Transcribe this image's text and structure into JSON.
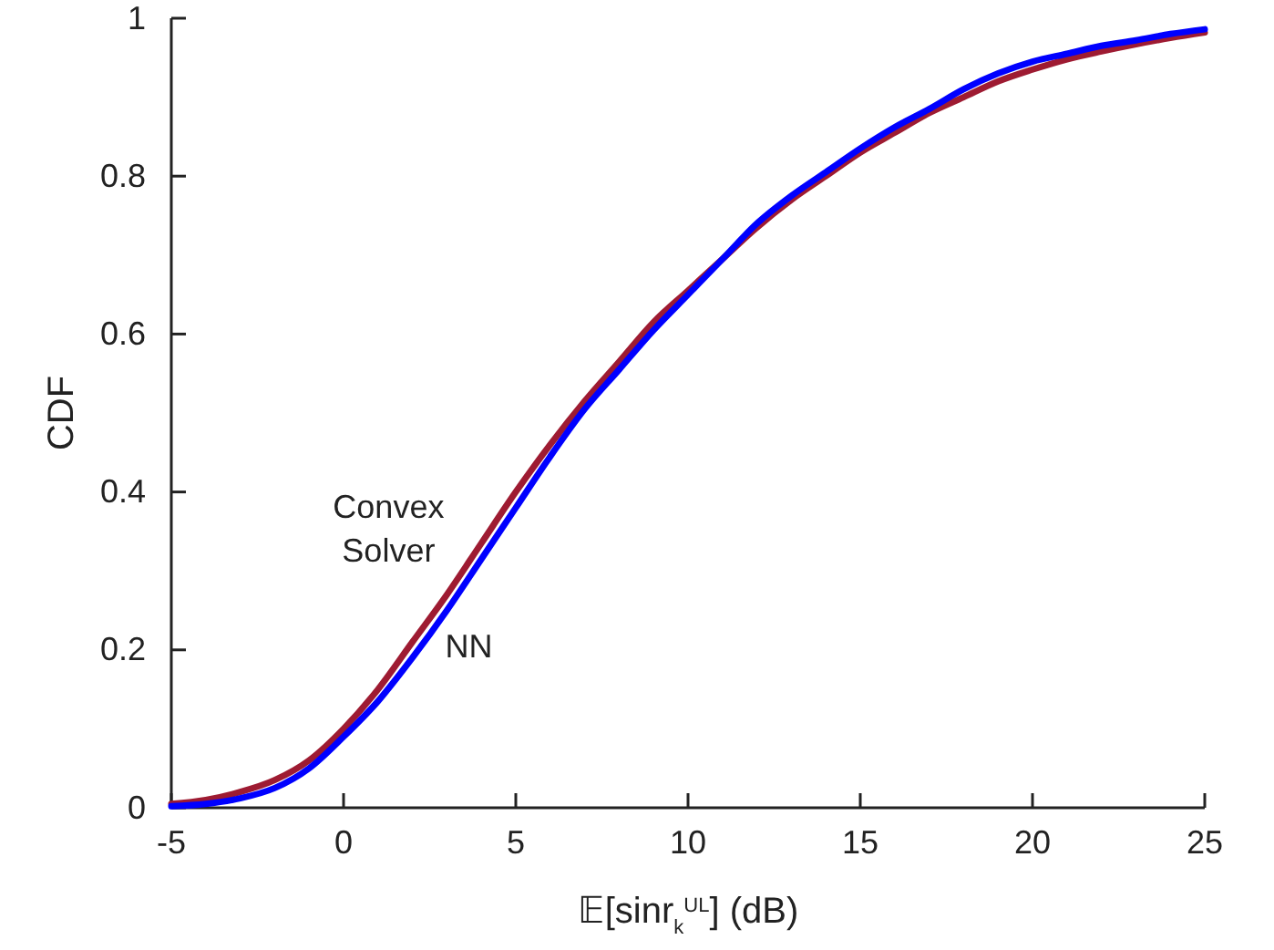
{
  "chart_data": {
    "type": "line",
    "xlabel": "𝔼[sinr$_{k}$$^{UL}$] (dB)",
    "ylabel": "CDF",
    "xlim": [
      -5,
      25
    ],
    "ylim": [
      0,
      1
    ],
    "xticks": [
      -5,
      0,
      5,
      10,
      15,
      20,
      25
    ],
    "yticks": [
      0,
      0.2,
      0.4,
      0.6,
      0.8,
      1
    ],
    "grid": false,
    "legend": false,
    "marker": "none",
    "line_style": "solid",
    "x": [
      -5,
      -4,
      -3,
      -2,
      -1,
      0,
      1,
      2,
      3,
      4,
      5,
      6,
      7,
      8,
      9,
      10,
      11,
      12,
      13,
      14,
      15,
      16,
      17,
      18,
      19,
      20,
      21,
      22,
      23,
      24,
      25
    ],
    "series": [
      {
        "name": "Convex Solver",
        "color": "#9e1b32",
        "values": [
          0.005,
          0.01,
          0.02,
          0.035,
          0.06,
          0.1,
          0.15,
          0.21,
          0.27,
          0.335,
          0.4,
          0.46,
          0.515,
          0.565,
          0.615,
          0.655,
          0.695,
          0.735,
          0.77,
          0.8,
          0.83,
          0.855,
          0.88,
          0.9,
          0.92,
          0.935,
          0.948,
          0.958,
          0.967,
          0.975,
          0.982
        ]
      },
      {
        "name": "NN",
        "color": "#0000ff",
        "values": [
          0.002,
          0.005,
          0.012,
          0.025,
          0.05,
          0.09,
          0.135,
          0.19,
          0.25,
          0.315,
          0.38,
          0.445,
          0.505,
          0.555,
          0.605,
          0.65,
          0.695,
          0.74,
          0.775,
          0.805,
          0.835,
          0.862,
          0.885,
          0.91,
          0.93,
          0.945,
          0.955,
          0.965,
          0.972,
          0.98,
          0.986
        ]
      }
    ]
  }
}
